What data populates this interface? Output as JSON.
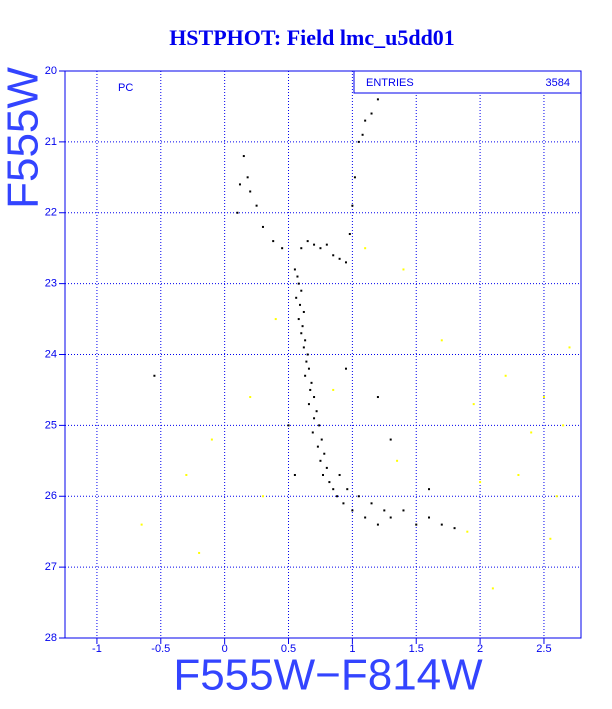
{
  "chart_data": {
    "type": "scatter",
    "title": "HSTPHOT: Field lmc_u5dd01",
    "x_label": "F555W−F814W",
    "y_label": "F555W",
    "panel_label": "PC",
    "stats": {
      "label": "ENTRIES",
      "value": 3584
    },
    "xlim": [
      -1.25,
      2.79
    ],
    "ylim": [
      28,
      20
    ],
    "xticks": [
      -1,
      -0.5,
      0,
      0.5,
      1,
      1.5,
      2,
      2.5
    ],
    "yticks": [
      20,
      21,
      22,
      23,
      24,
      25,
      26,
      27,
      28
    ],
    "grid": true,
    "series": [
      {
        "color": "#000000",
        "x": [
          0.55,
          0.57,
          0.58,
          0.6,
          0.56,
          0.59,
          0.62,
          0.58,
          0.61,
          0.6,
          0.63,
          0.62,
          0.65,
          0.64,
          0.66,
          0.63,
          0.68,
          0.67,
          0.7,
          0.66,
          0.72,
          0.7,
          0.74,
          0.69,
          0.76,
          0.73,
          0.78,
          0.75,
          0.8,
          0.77,
          0.82,
          0.85,
          0.88,
          0.9,
          0.93,
          0.96,
          1.0,
          1.05,
          1.1,
          1.15,
          1.2,
          1.25,
          1.3,
          1.4,
          1.5,
          1.6,
          1.7,
          1.8,
          0.6,
          0.65,
          0.7,
          0.75,
          0.8,
          0.85,
          0.9,
          0.95,
          0.98,
          1.0,
          1.02,
          1.05,
          1.08,
          1.1,
          1.15,
          1.2,
          0.15,
          0.18,
          0.2,
          0.25,
          0.12,
          0.3,
          0.38,
          0.45,
          0.1,
          -0.55,
          0.5,
          0.55,
          1.3,
          1.6,
          1.2,
          0.95
        ],
        "values": [
          22.8,
          22.9,
          23.0,
          23.1,
          23.2,
          23.3,
          23.4,
          23.5,
          23.6,
          23.7,
          23.8,
          23.9,
          24.0,
          24.1,
          24.2,
          24.3,
          24.4,
          24.5,
          24.6,
          24.7,
          24.8,
          24.9,
          25.0,
          25.1,
          25.2,
          25.3,
          25.4,
          25.5,
          25.6,
          25.7,
          25.8,
          25.9,
          26.0,
          25.7,
          26.1,
          25.9,
          26.2,
          26.0,
          26.3,
          26.1,
          26.4,
          26.2,
          26.3,
          26.2,
          26.4,
          26.3,
          26.4,
          26.45,
          22.5,
          22.4,
          22.45,
          22.5,
          22.45,
          22.6,
          22.65,
          22.7,
          22.3,
          21.9,
          21.5,
          21.0,
          20.9,
          20.7,
          20.6,
          20.4,
          21.2,
          21.5,
          21.7,
          21.9,
          21.6,
          22.2,
          22.4,
          22.5,
          22.0,
          24.3,
          25.0,
          25.7,
          25.2,
          25.9,
          24.6,
          24.2
        ]
      },
      {
        "color": "#ffff00",
        "x": [
          2.6,
          2.3,
          2.5,
          2.7,
          2.4,
          1.9,
          2.2,
          2.0,
          1.7,
          -0.3,
          -0.65,
          -0.1,
          0.2,
          0.4,
          0.85,
          1.1,
          1.4,
          2.55,
          2.65,
          1.95,
          0.3,
          -0.2,
          2.1,
          1.35
        ],
        "values": [
          26.0,
          25.7,
          24.6,
          23.9,
          25.1,
          26.5,
          24.3,
          25.8,
          23.8,
          25.7,
          26.4,
          25.2,
          24.6,
          23.5,
          24.5,
          22.5,
          22.8,
          26.6,
          25.0,
          24.7,
          26.0,
          26.8,
          27.3,
          25.5
        ]
      }
    ]
  }
}
